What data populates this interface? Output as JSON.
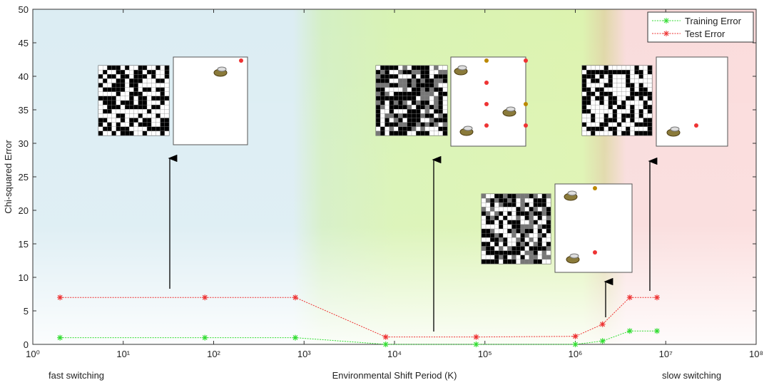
{
  "chart_data": {
    "type": "line",
    "x": [
      2,
      80,
      800,
      8000,
      80000,
      1000000,
      2000000,
      4000000,
      8000000
    ],
    "series": [
      {
        "name": "Training Error",
        "color": "#33dd33",
        "values": [
          1,
          1,
          1,
          0,
          0,
          0,
          0.5,
          2,
          2
        ]
      },
      {
        "name": "Test Error",
        "color": "#ee3333",
        "values": [
          7,
          7,
          7,
          1.1,
          1.1,
          1.2,
          3,
          7,
          7
        ]
      }
    ],
    "xlabel": "Environmental Shift Period (K)",
    "ylabel": "Chi-squared Error",
    "xscale": "log",
    "xlim": [
      1,
      100000000
    ],
    "xticks": [
      {
        "value": 1,
        "label": "10⁰"
      },
      {
        "value": 10,
        "label": "10¹"
      },
      {
        "value": 100,
        "label": "10²"
      },
      {
        "value": 1000,
        "label": "10³"
      },
      {
        "value": 10000,
        "label": "10⁴"
      },
      {
        "value": 100000,
        "label": "10⁵"
      },
      {
        "value": 1000000,
        "label": "10⁶"
      },
      {
        "value": 10000000,
        "label": "10⁷"
      },
      {
        "value": 100000000,
        "label": "10⁸"
      }
    ],
    "ylim": [
      0,
      50
    ],
    "yticks": [
      0,
      5,
      10,
      15,
      20,
      25,
      30,
      35,
      40,
      45,
      50
    ],
    "legend": "upper right",
    "annotations": [
      "fast  switching",
      "slow  switching"
    ]
  }
}
